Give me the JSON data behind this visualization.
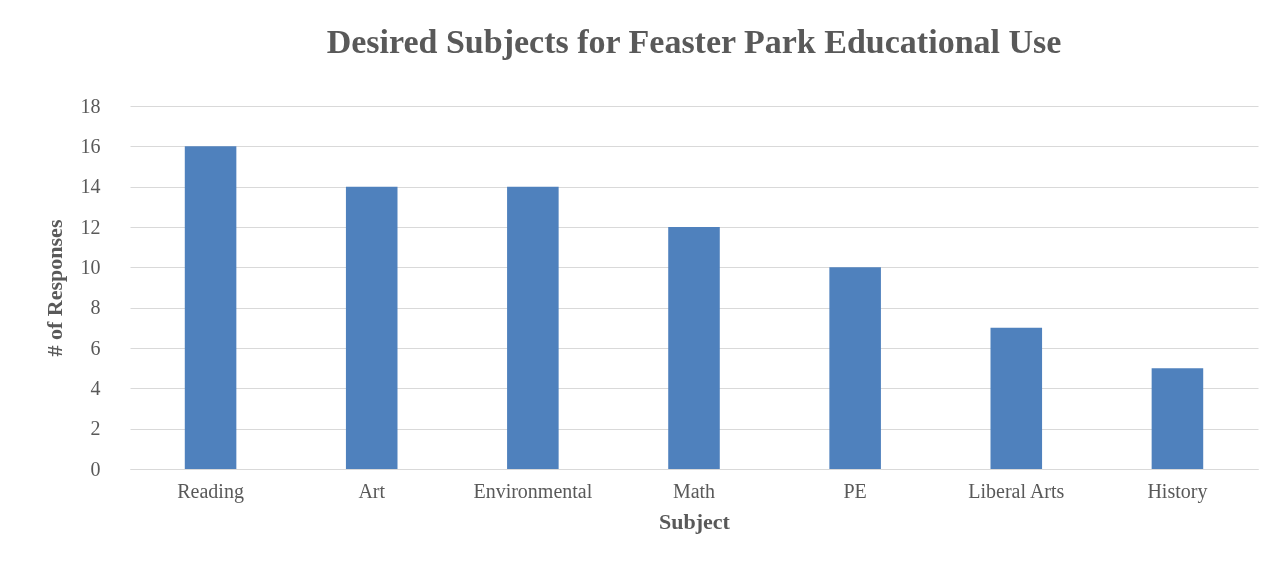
{
  "chart_data": {
    "type": "bar",
    "title": "Desired Subjects for Feaster Park Educational Use",
    "xlabel": "Subject",
    "ylabel": "# of Responses",
    "categories": [
      "Reading",
      "Art",
      "Environmental",
      "Math",
      "PE",
      "Liberal Arts",
      "History"
    ],
    "values": [
      16,
      14,
      14,
      12,
      10,
      7,
      5
    ],
    "color": "#4f81bd",
    "ylim": [
      0,
      18
    ],
    "yticks": [
      0,
      2,
      4,
      6,
      8,
      10,
      12,
      14,
      16,
      18
    ],
    "grid": "y"
  }
}
